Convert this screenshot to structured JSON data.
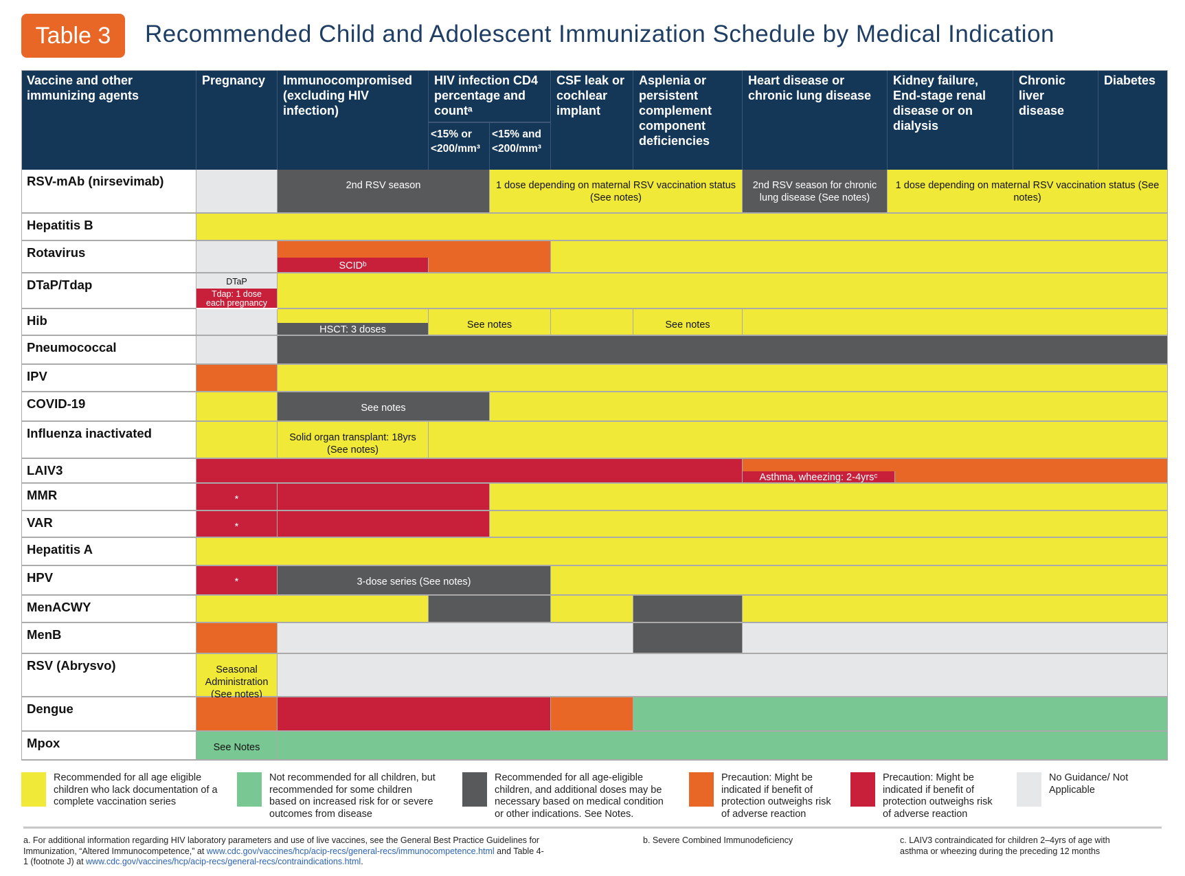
{
  "header": {
    "badge": "Table 3",
    "title": "Recommended Child and Adolescent Immunization Schedule by Medical Indication"
  },
  "columns": {
    "vaccine": "Vaccine and other immunizing agents",
    "list": [
      "Pregnancy",
      "Immunocompromised (excluding HIV infection)",
      "HIV infection CD4 percentage and countᵃ",
      "CSF leak or cochlear implant",
      "Asplenia or persistent complement component deficiencies",
      "Heart disease or chronic lung disease",
      "Kidney failure, End-stage renal disease or on dialysis",
      "Chronic liver disease",
      "Diabetes"
    ],
    "hiv_sub": [
      "<15% or <200/mm³",
      "<15% and <200/mm³"
    ]
  },
  "colors": {
    "yellow": "#f0e938",
    "green": "#79c792",
    "dark": "#58595b",
    "orange": "#e96726",
    "red": "#c8203a",
    "gray": "#e6e7e8",
    "navy": "#143757"
  },
  "rows": [
    {
      "name": "RSV-mAb (nirsevimab)",
      "segs": [
        {
          "c": [
            0,
            0
          ],
          "cat": "gray"
        },
        {
          "c": [
            1,
            2
          ],
          "cat": "dark",
          "text": "2nd RSV season"
        },
        {
          "c": [
            3,
            5
          ],
          "cat": "yellow",
          "text": "1 dose depending on maternal RSV vaccination status (See notes)"
        },
        {
          "c": [
            6,
            6
          ],
          "cat": "dark",
          "text": "2nd RSV season for chronic lung disease (See notes)"
        },
        {
          "c": [
            7,
            9
          ],
          "cat": "yellow",
          "text": "1 dose depending on maternal RSV vaccination status (See notes)"
        }
      ]
    },
    {
      "name": "Hepatitis B",
      "segs": [
        {
          "c": [
            0,
            9
          ],
          "cat": "yellow"
        }
      ]
    },
    {
      "name": "Rotavirus",
      "segs": [
        {
          "c": [
            0,
            0
          ],
          "cat": "gray"
        },
        {
          "c": [
            1,
            3
          ],
          "cat": "orange"
        },
        {
          "c": [
            1,
            1
          ],
          "cat": "red",
          "text": "SCIDᵇ",
          "part": "bottom"
        },
        {
          "c": [
            4,
            9
          ],
          "cat": "yellow"
        }
      ]
    },
    {
      "name": "DTaP/Tdap",
      "segs": [
        {
          "c": [
            0,
            0
          ],
          "cat": "gray",
          "text": "DTaP",
          "part": "top"
        },
        {
          "c": [
            0,
            0
          ],
          "cat": "red",
          "text": "Tdap: 1 dose each pregnancy",
          "part": "bottomsmall"
        },
        {
          "c": [
            1,
            9
          ],
          "cat": "yellow"
        }
      ]
    },
    {
      "name": "Hib",
      "segs": [
        {
          "c": [
            0,
            0
          ],
          "cat": "gray"
        },
        {
          "c": [
            1,
            1
          ],
          "cat": "yellow"
        },
        {
          "c": [
            1,
            1
          ],
          "cat": "dark",
          "text": "HSCT: 3 doses",
          "part": "bottom"
        },
        {
          "c": [
            2,
            3
          ],
          "cat": "yellow",
          "text": "See notes"
        },
        {
          "c": [
            4,
            4
          ],
          "cat": "yellow"
        },
        {
          "c": [
            5,
            5
          ],
          "cat": "yellow",
          "text": "See notes"
        },
        {
          "c": [
            6,
            9
          ],
          "cat": "yellow"
        }
      ]
    },
    {
      "name": "Pneumococcal",
      "segs": [
        {
          "c": [
            0,
            0
          ],
          "cat": "gray"
        },
        {
          "c": [
            1,
            9
          ],
          "cat": "dark"
        }
      ]
    },
    {
      "name": "IPV",
      "segs": [
        {
          "c": [
            0,
            0
          ],
          "cat": "orange"
        },
        {
          "c": [
            1,
            9
          ],
          "cat": "yellow"
        }
      ]
    },
    {
      "name": "COVID-19",
      "segs": [
        {
          "c": [
            0,
            0
          ],
          "cat": "yellow"
        },
        {
          "c": [
            1,
            2
          ],
          "cat": "dark",
          "text": "See notes"
        },
        {
          "c": [
            3,
            9
          ],
          "cat": "yellow"
        }
      ]
    },
    {
      "name": "Influenza inactivated",
      "segs": [
        {
          "c": [
            0,
            0
          ],
          "cat": "yellow"
        },
        {
          "c": [
            1,
            1
          ],
          "cat": "yellow",
          "text": "Solid organ transplant: 18yrs (See notes)"
        },
        {
          "c": [
            2,
            9
          ],
          "cat": "yellow"
        }
      ]
    },
    {
      "name": "LAIV3",
      "segs": [
        {
          "c": [
            0,
            5
          ],
          "cat": "red"
        },
        {
          "c": [
            6,
            9
          ],
          "cat": "orange"
        },
        {
          "c": [
            6,
            6
          ],
          "cat": "red",
          "text": "Asthma, wheezing: 2-4yrsᶜ",
          "part": "bottomwide"
        }
      ]
    },
    {
      "name": "MMR",
      "segs": [
        {
          "c": [
            0,
            0
          ],
          "cat": "red",
          "text": "*"
        },
        {
          "c": [
            1,
            2
          ],
          "cat": "red"
        },
        {
          "c": [
            3,
            9
          ],
          "cat": "yellow"
        }
      ]
    },
    {
      "name": "VAR",
      "segs": [
        {
          "c": [
            0,
            0
          ],
          "cat": "red",
          "text": "*"
        },
        {
          "c": [
            1,
            2
          ],
          "cat": "red"
        },
        {
          "c": [
            3,
            9
          ],
          "cat": "yellow"
        }
      ]
    },
    {
      "name": "Hepatitis A",
      "segs": [
        {
          "c": [
            0,
            9
          ],
          "cat": "yellow"
        }
      ]
    },
    {
      "name": "HPV",
      "segs": [
        {
          "c": [
            0,
            0
          ],
          "cat": "red",
          "text": "*"
        },
        {
          "c": [
            1,
            3
          ],
          "cat": "dark",
          "text": "3-dose series (See notes)"
        },
        {
          "c": [
            4,
            9
          ],
          "cat": "yellow"
        }
      ]
    },
    {
      "name": "MenACWY",
      "segs": [
        {
          "c": [
            0,
            1
          ],
          "cat": "yellow"
        },
        {
          "c": [
            2,
            3
          ],
          "cat": "dark"
        },
        {
          "c": [
            4,
            4
          ],
          "cat": "yellow"
        },
        {
          "c": [
            5,
            5
          ],
          "cat": "dark"
        },
        {
          "c": [
            6,
            9
          ],
          "cat": "yellow"
        }
      ]
    },
    {
      "name": "MenB",
      "segs": [
        {
          "c": [
            0,
            0
          ],
          "cat": "orange"
        },
        {
          "c": [
            1,
            4
          ],
          "cat": "gray"
        },
        {
          "c": [
            5,
            5
          ],
          "cat": "dark"
        },
        {
          "c": [
            6,
            9
          ],
          "cat": "gray"
        }
      ]
    },
    {
      "name": "RSV (Abrysvo)",
      "segs": [
        {
          "c": [
            0,
            0
          ],
          "cat": "yellow",
          "text": "Seasonal Administration (See notes)"
        },
        {
          "c": [
            1,
            9
          ],
          "cat": "gray"
        }
      ]
    },
    {
      "name": "Dengue",
      "segs": [
        {
          "c": [
            0,
            0
          ],
          "cat": "orange"
        },
        {
          "c": [
            1,
            3
          ],
          "cat": "red"
        },
        {
          "c": [
            4,
            4
          ],
          "cat": "orange"
        },
        {
          "c": [
            5,
            9
          ],
          "cat": "green"
        }
      ]
    },
    {
      "name": "Mpox",
      "segs": [
        {
          "c": [
            0,
            0
          ],
          "cat": "green",
          "text": "See Notes"
        },
        {
          "c": [
            1,
            9
          ],
          "cat": "green"
        }
      ]
    }
  ],
  "legend": [
    {
      "cat": "yellow",
      "text": "Recommended for all age eligible children who lack documentation of a complete vaccination series"
    },
    {
      "cat": "green",
      "text": "Not recommended for all children, but recommended for some children based on increased risk for or severe outcomes from disease"
    },
    {
      "cat": "dark",
      "text": "Recommended for all age-eligible children, and additional doses may be necessary based on medical condition or other indications. See Notes."
    },
    {
      "cat": "orange",
      "text": "Precaution: Might be indicated if benefit of protection outweighs risk of adverse reaction"
    },
    {
      "cat": "red",
      "text": "Precaution: Might be indicated if benefit of protection outweighs risk of adverse reaction"
    },
    {
      "cat": "gray",
      "text": "No Guidance/ Not Applicable"
    }
  ],
  "footnotes": {
    "a_1": "a. For additional information regarding HIV laboratory parameters and use of live vaccines, see the General Best Practice Guidelines for Immunization, “Altered Immunocompetence,” at ",
    "a_link1": "www.cdc.gov/vaccines/hcp/acip-recs/general-recs/immunocompetence.html",
    "a_2": " and Table 4-1 (footnote J) at ",
    "a_link2": "www.cdc.gov/vaccines/hcp/acip-recs/general-recs/contraindications.html",
    "a_3": ".",
    "b": "b. Severe Combined Immunodeficiency",
    "c": "c. LAIV3 contraindicated for children 2–4yrs of age with asthma or wheezing during the preceding 12 months"
  }
}
